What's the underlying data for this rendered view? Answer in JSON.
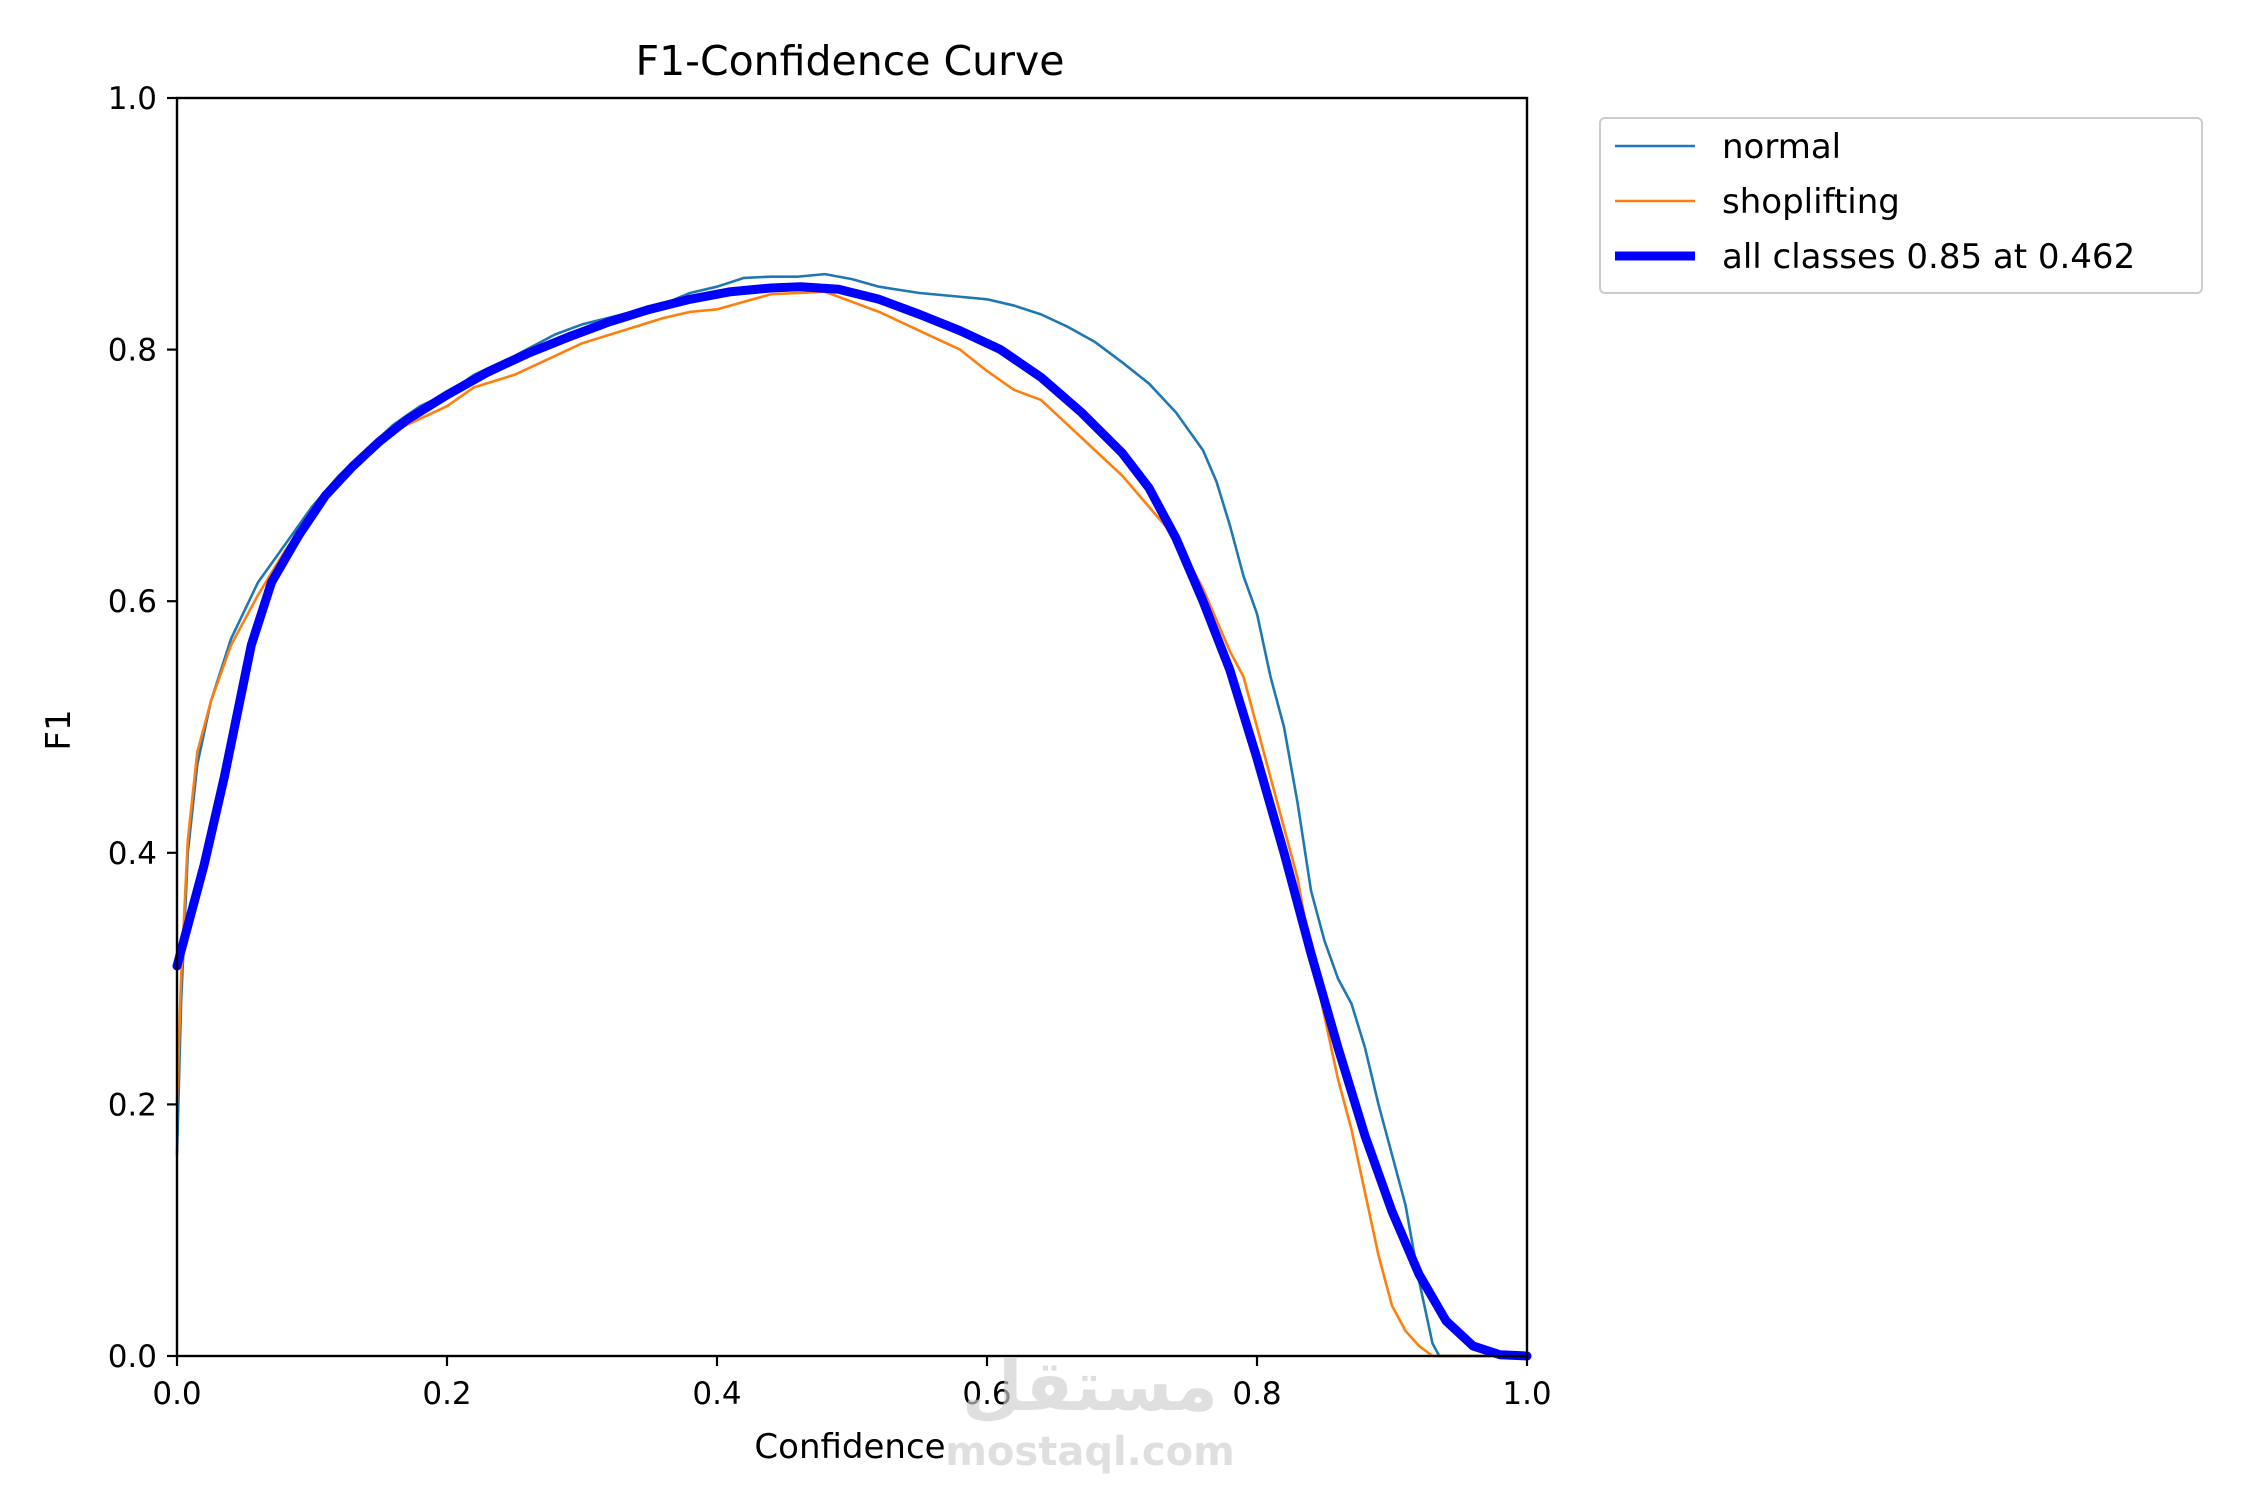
{
  "chart_data": {
    "type": "line",
    "title": "F1-Confidence Curve",
    "xlabel": "Confidence",
    "ylabel": "F1",
    "xlim": [
      0.0,
      1.0
    ],
    "ylim": [
      0.0,
      1.0
    ],
    "xticks": [
      "0.0",
      "0.2",
      "0.4",
      "0.6",
      "0.8",
      "1.0"
    ],
    "yticks": [
      "0.0",
      "0.2",
      "0.4",
      "0.6",
      "0.8",
      "1.0"
    ],
    "legend_placement": "outside-top-right",
    "series": [
      {
        "name": "normal",
        "color": "#1f77b4",
        "style": "thin",
        "points": [
          [
            0.0,
            0.16
          ],
          [
            0.003,
            0.28
          ],
          [
            0.008,
            0.4
          ],
          [
            0.015,
            0.47
          ],
          [
            0.025,
            0.52
          ],
          [
            0.04,
            0.57
          ],
          [
            0.06,
            0.615
          ],
          [
            0.08,
            0.645
          ],
          [
            0.1,
            0.675
          ],
          [
            0.12,
            0.7
          ],
          [
            0.14,
            0.72
          ],
          [
            0.16,
            0.74
          ],
          [
            0.18,
            0.755
          ],
          [
            0.2,
            0.765
          ],
          [
            0.22,
            0.78
          ],
          [
            0.25,
            0.795
          ],
          [
            0.28,
            0.812
          ],
          [
            0.3,
            0.82
          ],
          [
            0.33,
            0.828
          ],
          [
            0.36,
            0.836
          ],
          [
            0.38,
            0.845
          ],
          [
            0.4,
            0.85
          ],
          [
            0.42,
            0.857
          ],
          [
            0.44,
            0.858
          ],
          [
            0.46,
            0.858
          ],
          [
            0.48,
            0.86
          ],
          [
            0.5,
            0.856
          ],
          [
            0.52,
            0.85
          ],
          [
            0.55,
            0.845
          ],
          [
            0.58,
            0.842
          ],
          [
            0.6,
            0.84
          ],
          [
            0.62,
            0.835
          ],
          [
            0.64,
            0.828
          ],
          [
            0.66,
            0.818
          ],
          [
            0.68,
            0.806
          ],
          [
            0.7,
            0.79
          ],
          [
            0.72,
            0.773
          ],
          [
            0.74,
            0.75
          ],
          [
            0.76,
            0.72
          ],
          [
            0.77,
            0.695
          ],
          [
            0.78,
            0.66
          ],
          [
            0.79,
            0.62
          ],
          [
            0.8,
            0.59
          ],
          [
            0.81,
            0.54
          ],
          [
            0.82,
            0.5
          ],
          [
            0.83,
            0.44
          ],
          [
            0.84,
            0.37
          ],
          [
            0.85,
            0.33
          ],
          [
            0.86,
            0.3
          ],
          [
            0.87,
            0.28
          ],
          [
            0.88,
            0.245
          ],
          [
            0.89,
            0.2
          ],
          [
            0.9,
            0.16
          ],
          [
            0.91,
            0.12
          ],
          [
            0.92,
            0.06
          ],
          [
            0.93,
            0.01
          ],
          [
            0.935,
            0.0
          ],
          [
            1.0,
            0.0
          ]
        ]
      },
      {
        "name": "shoplifting",
        "color": "#ff7f0e",
        "style": "thin",
        "points": [
          [
            0.0,
            0.2
          ],
          [
            0.003,
            0.3
          ],
          [
            0.008,
            0.41
          ],
          [
            0.015,
            0.48
          ],
          [
            0.025,
            0.52
          ],
          [
            0.04,
            0.565
          ],
          [
            0.06,
            0.605
          ],
          [
            0.08,
            0.64
          ],
          [
            0.1,
            0.67
          ],
          [
            0.12,
            0.695
          ],
          [
            0.14,
            0.715
          ],
          [
            0.16,
            0.735
          ],
          [
            0.18,
            0.745
          ],
          [
            0.2,
            0.755
          ],
          [
            0.22,
            0.77
          ],
          [
            0.25,
            0.78
          ],
          [
            0.28,
            0.795
          ],
          [
            0.3,
            0.805
          ],
          [
            0.33,
            0.815
          ],
          [
            0.36,
            0.825
          ],
          [
            0.38,
            0.83
          ],
          [
            0.4,
            0.832
          ],
          [
            0.42,
            0.838
          ],
          [
            0.44,
            0.844
          ],
          [
            0.46,
            0.845
          ],
          [
            0.48,
            0.846
          ],
          [
            0.5,
            0.838
          ],
          [
            0.52,
            0.83
          ],
          [
            0.54,
            0.82
          ],
          [
            0.56,
            0.81
          ],
          [
            0.58,
            0.8
          ],
          [
            0.6,
            0.783
          ],
          [
            0.62,
            0.768
          ],
          [
            0.64,
            0.76
          ],
          [
            0.66,
            0.74
          ],
          [
            0.68,
            0.72
          ],
          [
            0.7,
            0.7
          ],
          [
            0.72,
            0.675
          ],
          [
            0.74,
            0.65
          ],
          [
            0.76,
            0.61
          ],
          [
            0.78,
            0.56
          ],
          [
            0.79,
            0.54
          ],
          [
            0.8,
            0.5
          ],
          [
            0.81,
            0.46
          ],
          [
            0.82,
            0.42
          ],
          [
            0.83,
            0.38
          ],
          [
            0.84,
            0.32
          ],
          [
            0.85,
            0.27
          ],
          [
            0.86,
            0.22
          ],
          [
            0.87,
            0.18
          ],
          [
            0.88,
            0.13
          ],
          [
            0.89,
            0.08
          ],
          [
            0.9,
            0.04
          ],
          [
            0.91,
            0.02
          ],
          [
            0.92,
            0.008
          ],
          [
            0.93,
            0.0
          ],
          [
            1.0,
            0.0
          ]
        ]
      },
      {
        "name": "all classes 0.85 at 0.462",
        "color": "#0000ff",
        "style": "thick",
        "points": [
          [
            0.0,
            0.31
          ],
          [
            0.02,
            0.39
          ],
          [
            0.035,
            0.46
          ],
          [
            0.055,
            0.565
          ],
          [
            0.07,
            0.615
          ],
          [
            0.09,
            0.652
          ],
          [
            0.11,
            0.684
          ],
          [
            0.13,
            0.707
          ],
          [
            0.15,
            0.727
          ],
          [
            0.17,
            0.744
          ],
          [
            0.2,
            0.764
          ],
          [
            0.23,
            0.782
          ],
          [
            0.26,
            0.797
          ],
          [
            0.29,
            0.81
          ],
          [
            0.32,
            0.822
          ],
          [
            0.35,
            0.832
          ],
          [
            0.38,
            0.84
          ],
          [
            0.41,
            0.846
          ],
          [
            0.44,
            0.849
          ],
          [
            0.462,
            0.85
          ],
          [
            0.49,
            0.848
          ],
          [
            0.52,
            0.84
          ],
          [
            0.55,
            0.828
          ],
          [
            0.58,
            0.815
          ],
          [
            0.61,
            0.8
          ],
          [
            0.64,
            0.778
          ],
          [
            0.67,
            0.75
          ],
          [
            0.7,
            0.718
          ],
          [
            0.72,
            0.69
          ],
          [
            0.74,
            0.65
          ],
          [
            0.76,
            0.6
          ],
          [
            0.78,
            0.545
          ],
          [
            0.8,
            0.475
          ],
          [
            0.82,
            0.4
          ],
          [
            0.84,
            0.32
          ],
          [
            0.86,
            0.245
          ],
          [
            0.88,
            0.175
          ],
          [
            0.9,
            0.115
          ],
          [
            0.92,
            0.065
          ],
          [
            0.94,
            0.028
          ],
          [
            0.96,
            0.008
          ],
          [
            0.98,
            0.001
          ],
          [
            1.0,
            0.0
          ]
        ]
      }
    ]
  },
  "watermark": {
    "arabic": "مستقل",
    "latin": "mostaql.com"
  }
}
